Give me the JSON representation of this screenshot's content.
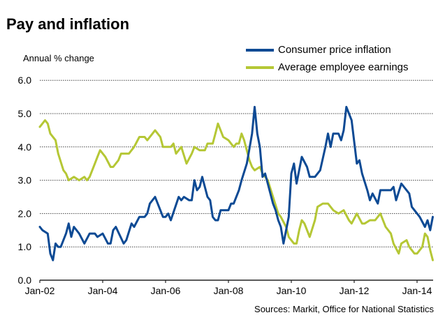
{
  "chart_data": {
    "type": "line",
    "title": "Pay and inflation",
    "ylabel": "Annual % change",
    "source": "Sources: Markit, Office for National Statistics",
    "ylim": [
      0,
      6
    ],
    "yticks": [
      "0.0",
      "1.0",
      "2.0",
      "3.0",
      "4.0",
      "5.0",
      "6.0"
    ],
    "xticks": [
      "Jan-02",
      "Jan-04",
      "Jan-06",
      "Jan-08",
      "Jan-10",
      "Jan-12",
      "Jan-14"
    ],
    "xlim": [
      "2002-01",
      "2014-07"
    ],
    "grid": "horizontal dotted",
    "legend_placement": "top-right",
    "series": [
      {
        "name": "Consumer price inflation",
        "color": "#0d4a94",
        "dates": [
          "2002-01",
          "2002-02",
          "2002-04",
          "2002-05",
          "2002-06",
          "2002-07",
          "2002-08",
          "2002-09",
          "2002-11",
          "2002-12",
          "2003-01",
          "2003-02",
          "2003-04",
          "2003-06",
          "2003-08",
          "2003-10",
          "2003-11",
          "2004-01",
          "2004-03",
          "2004-04",
          "2004-05",
          "2004-06",
          "2004-09",
          "2004-10",
          "2004-12",
          "2005-01",
          "2005-03",
          "2005-05",
          "2005-06",
          "2005-07",
          "2005-09",
          "2005-12",
          "2006-01",
          "2006-02",
          "2006-03",
          "2006-06",
          "2006-07",
          "2006-08",
          "2006-10",
          "2006-11",
          "2006-12",
          "2007-01",
          "2007-02",
          "2007-03",
          "2007-05",
          "2007-06",
          "2007-07",
          "2007-08",
          "2007-09",
          "2007-10",
          "2008-01",
          "2008-02",
          "2008-03",
          "2008-05",
          "2008-06",
          "2008-08",
          "2008-10",
          "2008-11",
          "2008-12",
          "2009-01",
          "2009-02",
          "2009-03",
          "2009-04",
          "2009-06",
          "2009-07",
          "2009-08",
          "2009-09",
          "2009-10",
          "2009-12",
          "2010-01",
          "2010-02",
          "2010-03",
          "2010-05",
          "2010-07",
          "2010-08",
          "2010-10",
          "2010-12",
          "2011-02",
          "2011-03",
          "2011-04",
          "2011-05",
          "2011-07",
          "2011-08",
          "2011-09",
          "2011-10",
          "2011-12",
          "2012-02",
          "2012-03",
          "2012-04",
          "2012-06",
          "2012-07",
          "2012-08",
          "2012-10",
          "2012-11",
          "2013-03",
          "2013-04",
          "2013-05",
          "2013-07",
          "2013-10",
          "2013-11",
          "2014-02",
          "2014-04",
          "2014-05",
          "2014-06",
          "2014-07"
        ],
        "values": [
          1.6,
          1.5,
          1.4,
          0.8,
          0.6,
          1.1,
          1.0,
          1.0,
          1.4,
          1.7,
          1.3,
          1.6,
          1.4,
          1.1,
          1.4,
          1.4,
          1.3,
          1.4,
          1.1,
          1.1,
          1.5,
          1.6,
          1.1,
          1.2,
          1.7,
          1.6,
          1.9,
          1.9,
          2.0,
          2.3,
          2.5,
          1.9,
          1.9,
          2.0,
          1.8,
          2.5,
          2.4,
          2.5,
          2.4,
          2.4,
          3.0,
          2.7,
          2.8,
          3.1,
          2.5,
          2.4,
          1.9,
          1.8,
          1.8,
          2.1,
          2.1,
          2.3,
          2.3,
          2.7,
          3.0,
          3.5,
          4.4,
          5.2,
          4.4,
          4.0,
          3.1,
          3.2,
          2.9,
          2.3,
          2.1,
          1.8,
          1.6,
          1.1,
          1.9,
          3.2,
          3.5,
          2.9,
          3.7,
          3.4,
          3.1,
          3.1,
          3.3,
          4.0,
          4.4,
          4.0,
          4.4,
          4.4,
          4.2,
          4.5,
          5.2,
          4.8,
          3.5,
          3.6,
          3.2,
          2.7,
          2.4,
          2.6,
          2.3,
          2.7,
          2.7,
          2.8,
          2.4,
          2.9,
          2.6,
          2.2,
          1.9,
          1.6,
          1.8,
          1.5,
          1.9
        ]
      },
      {
        "name": "Average employee earnings",
        "color": "#b5c735",
        "dates": [
          "2002-01",
          "2002-03",
          "2002-04",
          "2002-05",
          "2002-07",
          "2002-08",
          "2002-10",
          "2002-11",
          "2002-12",
          "2003-02",
          "2003-04",
          "2003-06",
          "2003-07",
          "2003-08",
          "2003-10",
          "2003-11",
          "2003-12",
          "2004-02",
          "2004-04",
          "2004-05",
          "2004-07",
          "2004-08",
          "2004-11",
          "2005-01",
          "2005-03",
          "2005-05",
          "2005-06",
          "2005-08",
          "2005-09",
          "2005-11",
          "2005-12",
          "2006-03",
          "2006-04",
          "2006-05",
          "2006-07",
          "2006-09",
          "2006-11",
          "2006-12",
          "2007-02",
          "2007-04",
          "2007-05",
          "2007-07",
          "2007-08",
          "2007-09",
          "2007-11",
          "2008-01",
          "2008-03",
          "2008-04",
          "2008-05",
          "2008-06",
          "2008-07",
          "2008-09",
          "2008-10",
          "2008-11",
          "2009-01",
          "2009-02",
          "2009-04",
          "2009-06",
          "2009-08",
          "2009-09",
          "2009-11",
          "2009-12",
          "2010-02",
          "2010-03",
          "2010-04",
          "2010-05",
          "2010-06",
          "2010-08",
          "2010-10",
          "2010-11",
          "2011-01",
          "2011-03",
          "2011-05",
          "2011-07",
          "2011-09",
          "2011-11",
          "2011-12",
          "2012-02",
          "2012-04",
          "2012-05",
          "2012-07",
          "2012-09",
          "2012-11",
          "2013-01",
          "2013-03",
          "2013-04",
          "2013-06",
          "2013-07",
          "2013-09",
          "2013-10",
          "2013-12",
          "2014-01",
          "2014-03",
          "2014-04",
          "2014-05",
          "2014-06",
          "2014-07"
        ],
        "values": [
          4.6,
          4.8,
          4.7,
          4.4,
          4.2,
          3.8,
          3.3,
          3.2,
          3.0,
          3.1,
          3.0,
          3.1,
          3.0,
          3.1,
          3.5,
          3.7,
          3.9,
          3.7,
          3.4,
          3.4,
          3.6,
          3.8,
          3.8,
          4.0,
          4.3,
          4.3,
          4.2,
          4.4,
          4.5,
          4.3,
          4.0,
          4.0,
          4.1,
          3.8,
          4.0,
          3.5,
          3.8,
          4.0,
          3.9,
          3.9,
          4.1,
          4.1,
          4.4,
          4.7,
          4.3,
          4.2,
          4.0,
          4.1,
          4.1,
          4.4,
          4.2,
          3.6,
          3.4,
          3.3,
          3.4,
          3.2,
          3.0,
          2.5,
          2.0,
          1.9,
          1.6,
          1.3,
          1.1,
          1.1,
          1.5,
          1.8,
          1.7,
          1.3,
          1.8,
          2.2,
          2.3,
          2.3,
          2.1,
          2.0,
          2.1,
          1.8,
          1.7,
          2.0,
          1.7,
          1.7,
          1.8,
          1.8,
          2.0,
          1.6,
          1.4,
          1.1,
          0.8,
          1.1,
          1.2,
          1.0,
          0.8,
          0.8,
          1.0,
          1.4,
          1.3,
          0.9,
          0.6
        ]
      }
    ]
  }
}
